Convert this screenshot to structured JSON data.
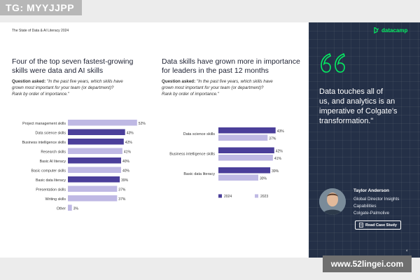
{
  "watermark_top": "TG: MYYJJPP",
  "watermark_bottom": "www.52lingei.com",
  "report_label": "The State of Data & AI Literacy 2024",
  "page_number": "4",
  "colors": {
    "bar_2024": "#4b3f9a",
    "bar_2023": "#bfb9e4",
    "panel_bg": "#243047",
    "accent_green": "#03ef62"
  },
  "left": {
    "heading": [
      "Four of the top seven fastest-growing",
      "skills were data and AI skills"
    ],
    "question_label": "Question asked:",
    "question_lines": [
      "\"In the past five years, which skills have",
      "grown most important for your team (or department)?",
      "Rank by order of importance.\""
    ]
  },
  "middle": {
    "heading": [
      "Data skills have grown more in importance",
      "for leaders in the past 12 months"
    ],
    "question_label": "Question asked:",
    "question_lines": [
      "\"In the past five years, which skills have",
      "grown most important for your team (or department)?",
      "Rank by order of importance.\""
    ]
  },
  "sidebar": {
    "logo_text": "datacamp",
    "logo_icon": "datacamp-logo-icon",
    "quote_icon": "quote-icon",
    "quote_lines": [
      "Data touches all of",
      "us, and analytics is an",
      "imperative of Colgate's",
      "transformation.\""
    ],
    "person_name": "Taylor Anderson",
    "person_title_lines": [
      "Global Director Insights",
      "Capabilities",
      "Colgate-Palmolive"
    ],
    "button_label": "Read Case Study",
    "button_icon": "document-icon"
  },
  "chart_data": [
    {
      "type": "bar",
      "orientation": "horizontal",
      "categories": [
        "Project management skills",
        "Data science skills",
        "Business intelligence skills",
        "Research skills",
        "Basic AI literacy",
        "Basic computer skills",
        "Basic data literacy",
        "Presentation skills",
        "Writing skills",
        "Other"
      ],
      "values": [
        52,
        43,
        42,
        41,
        40,
        40,
        39,
        37,
        37,
        3
      ],
      "value_labels": [
        "52%",
        "43%",
        "42%",
        "41%",
        "40%",
        "40%",
        "39%",
        "37%",
        "37%",
        "3%"
      ],
      "highlighted": [
        "Data science skills",
        "Business intelligence skills",
        "Basic AI literacy",
        "Basic data literacy"
      ],
      "xlim": [
        0,
        100
      ]
    },
    {
      "type": "bar",
      "orientation": "horizontal",
      "categories": [
        "Data science skills",
        "Business intelligence skills",
        "Basic data literacy"
      ],
      "series": [
        {
          "name": "2024",
          "values": [
            43,
            42,
            39
          ],
          "value_labels": [
            "43%",
            "42%",
            "39%"
          ]
        },
        {
          "name": "2023",
          "values": [
            37,
            41,
            30
          ],
          "value_labels": [
            "37%",
            "41%",
            "30%"
          ]
        }
      ],
      "legend": "bottom",
      "xlim": [
        0,
        100
      ]
    }
  ]
}
